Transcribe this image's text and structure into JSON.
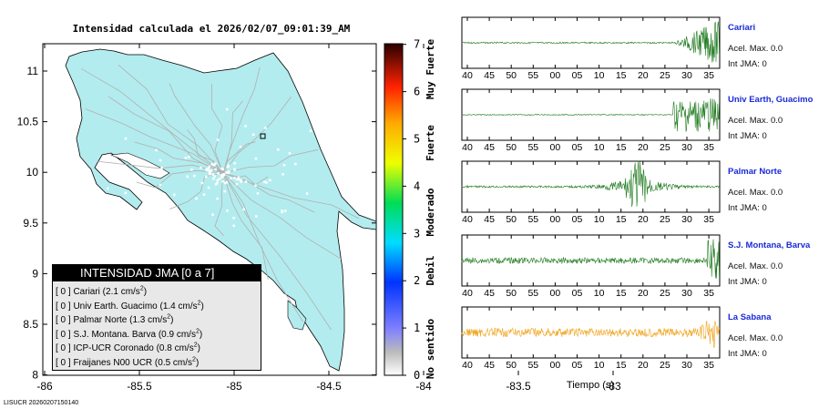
{
  "map": {
    "title": "Intensidad calculada el 2026/02/07_09:01:39_AM",
    "x_ticks": [
      "-86",
      "-85.5",
      "-85",
      "-84.5",
      "-84",
      "-83.5",
      "-83"
    ],
    "y_ticks": [
      "11",
      "10.5",
      "10",
      "9.5",
      "9",
      "8.5",
      "8"
    ],
    "colors": {
      "land": "#b3ecee",
      "roads": "#b0b0b0",
      "border": "#000000"
    }
  },
  "colorbar": {
    "ticks": [
      "0",
      "1",
      "2",
      "3",
      "4",
      "5",
      "6",
      "7"
    ],
    "labels": [
      "No sentido",
      "Debil",
      "Moderado",
      "Fuerte",
      "Muy Fuerte"
    ]
  },
  "legend": {
    "title": "INTENSIDAD JMA [0 a 7]",
    "rows": [
      {
        "text": "[ 0 ]  Cariari (2.1 cm/s",
        "exp": "2",
        "close": ")"
      },
      {
        "text": "[ 0 ]  Univ Earth. Guacimo (1.4 cm/s",
        "exp": "2",
        "close": ")"
      },
      {
        "text": "[ 0 ]  Palmar Norte (1.3 cm/s",
        "exp": "2",
        "close": ")"
      },
      {
        "text": "[ 0 ]  S.J. Montana. Barva (0.9 cm/s",
        "exp": "2",
        "close": ")"
      },
      {
        "text": "[ 0 ]  ICP-UCR Coronado (0.8 cm/s",
        "exp": "2",
        "close": ")"
      },
      {
        "text": "[ 0 ]  Fraijanes N00 UCR (0.5 cm/s",
        "exp": "2",
        "close": ")"
      }
    ]
  },
  "seismograms": {
    "x_ticks": [
      "40",
      "45",
      "50",
      "55",
      "00",
      "05",
      "10",
      "15",
      "20",
      "25",
      "30",
      "35"
    ],
    "xlabel": "Tiempo (s)",
    "stations": [
      {
        "name": "Cariari",
        "acel": "Acel. Max. 0.0",
        "jma": "Int JMA: 0",
        "color": "#1f7a1f"
      },
      {
        "name": "Univ Earth, Guacimo",
        "acel": "Acel. Max. 0.0",
        "jma": "Int JMA: 0",
        "color": "#1f7a1f"
      },
      {
        "name": "Palmar Norte",
        "acel": "Acel. Max. 0.0",
        "jma": "Int JMA: 0",
        "color": "#1f7a1f"
      },
      {
        "name": "S.J. Montana, Barva",
        "acel": "Acel. Max. 0.0",
        "jma": "Int JMA: 0",
        "color": "#1f7a1f"
      },
      {
        "name": "La Sabana",
        "acel": "Acel. Max. 0.0",
        "jma": "Int JMA: 0",
        "color": "#f0a31a"
      }
    ]
  },
  "footer": "LISUCR 20260207150140"
}
